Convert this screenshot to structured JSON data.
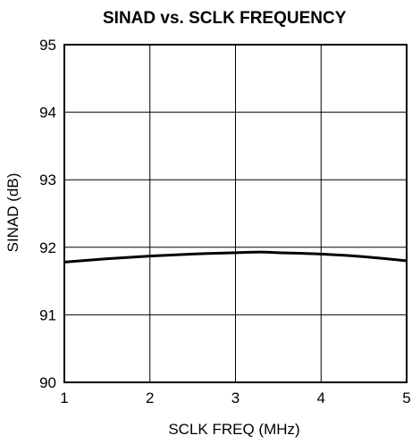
{
  "chart_data": {
    "type": "line",
    "title": "SINAD vs. SCLK FREQUENCY",
    "xlabel": "SCLK FREQ (MHz)",
    "ylabel": "SINAD (dB)",
    "xlim": [
      1,
      5
    ],
    "ylim": [
      90,
      95
    ],
    "xticks": [
      1,
      2,
      3,
      4,
      5
    ],
    "yticks": [
      90,
      91,
      92,
      93,
      94,
      95
    ],
    "x_tick_labels": [
      "1",
      "2",
      "3",
      "4",
      "5"
    ],
    "y_tick_labels": [
      "90",
      "91",
      "92",
      "93",
      "94",
      "95"
    ],
    "grid": true,
    "colors": {
      "line": "#000000",
      "grid": "#000000",
      "background": "#ffffff"
    },
    "series": [
      {
        "x": [
          1.0,
          1.5,
          2.0,
          2.5,
          3.0,
          3.3,
          3.5,
          4.0,
          4.5,
          5.0
        ],
        "y": [
          91.78,
          91.83,
          91.87,
          91.9,
          91.92,
          91.93,
          91.92,
          91.9,
          91.86,
          91.8
        ]
      }
    ]
  }
}
